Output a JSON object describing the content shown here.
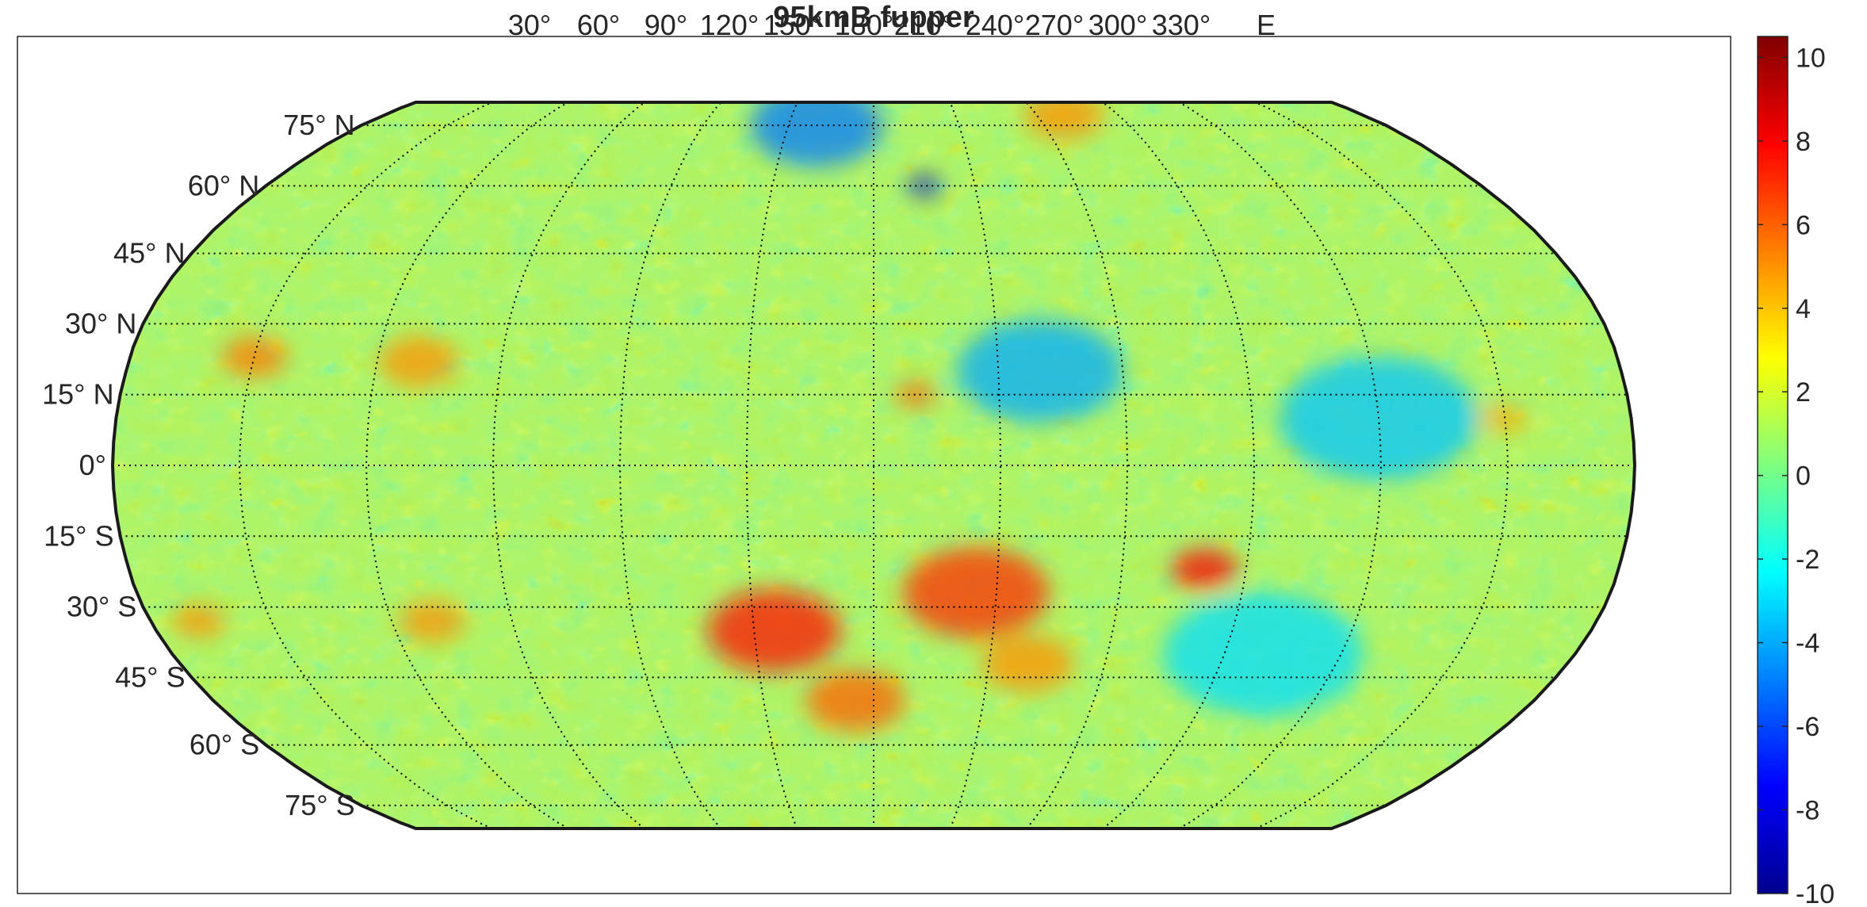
{
  "chart_data": [
    {
      "type": "heatmap",
      "title": "95kmB fupper",
      "projection": "Robinson",
      "grid": true,
      "xlabel": "",
      "ylabel": "",
      "longitude_labels": [
        "30°",
        "60°",
        "90°",
        "120°",
        "150°",
        "180°",
        "210°",
        "240°",
        "270°",
        "300°",
        "330°",
        "E"
      ],
      "latitude_labels": [
        "75° N",
        "60° N",
        "45° N",
        "30° N",
        "15° N",
        "0°",
        "15° S",
        "30° S",
        "45° S",
        "60° S",
        "75° S"
      ],
      "latitudes": [
        75,
        60,
        45,
        30,
        15,
        0,
        -15,
        -30,
        -45,
        -60,
        -75
      ],
      "meridian_offsets": [
        -150,
        -120,
        -90,
        -60,
        -30,
        0,
        30,
        60,
        90,
        120,
        150
      ],
      "field_anomalies": [
        {
          "lon_offset": 25,
          "lat": -27,
          "value": 7,
          "spread": 22
        },
        {
          "lon_offset": -25,
          "lat": -35,
          "value": 7.5,
          "spread": 20
        },
        {
          "lon_offset": 80,
          "lat": -22,
          "value": 8,
          "spread": 10
        },
        {
          "lon_offset": -5,
          "lat": -50,
          "value": 6,
          "spread": 15
        },
        {
          "lon_offset": 40,
          "lat": -42,
          "value": 5,
          "spread": 14
        },
        {
          "lon_offset": -150,
          "lat": 23,
          "value": 5.5,
          "spread": 10
        },
        {
          "lon_offset": -110,
          "lat": 22,
          "value": 5,
          "spread": 12
        },
        {
          "lon_offset": 10,
          "lat": 15,
          "value": 6,
          "spread": 6
        },
        {
          "lon_offset": -110,
          "lat": -33,
          "value": 5,
          "spread": 10
        },
        {
          "lon_offset": -168,
          "lat": -33,
          "value": 5,
          "spread": 8
        },
        {
          "lon_offset": 150,
          "lat": 10,
          "value": 4.5,
          "spread": 7
        },
        {
          "lon_offset": 70,
          "lat": 78,
          "value": 5,
          "spread": 12
        },
        {
          "lon_offset": 15,
          "lat": 60,
          "value": -9,
          "spread": 5
        },
        {
          "lon_offset": 40,
          "lat": 20,
          "value": -4,
          "spread": 25
        },
        {
          "lon_offset": 120,
          "lat": 10,
          "value": -3.5,
          "spread": 30
        },
        {
          "lon_offset": -20,
          "lat": 75,
          "value": -5,
          "spread": 20
        },
        {
          "lon_offset": 100,
          "lat": -40,
          "value": -3,
          "spread": 30
        }
      ],
      "colorbar": {
        "ticks": [
          "10",
          "8",
          "6",
          "4",
          "2",
          "0",
          "-2",
          "-4",
          "-6",
          "-8",
          "-10"
        ],
        "tick_values": [
          10,
          8,
          6,
          4,
          2,
          0,
          -2,
          -4,
          -6,
          -8,
          -10
        ],
        "min": -10,
        "max": 10.5,
        "colormap": "jet",
        "colors": [
          "#00008f",
          "#0000ff",
          "#00ffff",
          "#ffff00",
          "#ff0000",
          "#800000"
        ]
      }
    }
  ]
}
